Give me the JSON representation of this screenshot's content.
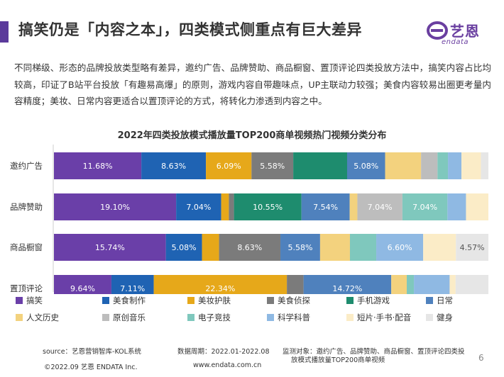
{
  "header": {
    "title": "搞笑仍是「内容之本」，四类模式侧重点有巨大差异",
    "accent_color": "#5b3a9b",
    "logo_cn": "艺恩",
    "logo_en": "endata",
    "logo_color": "#6a3fa0"
  },
  "description": "不同梯级、形态的品牌投放类型略有差异，邀约广告、品牌赞助、商品橱窗、置顶评论四类投放方法中，搞笑内容占比均较高，印证了B站平台投放「有趣易高爆」的原则，游戏内容自带趣味点，UP主联动力较强；美食内容较易出圈更考量内容精度；美妆、日常内容更适合以置顶评论的方式，将转化力渗透到内容之中。",
  "chart_data": {
    "type": "bar",
    "orientation": "horizontal",
    "stacked": true,
    "percent": true,
    "title": "2022年四类投放模式播放量TOP200商单视频热门视频分类分布",
    "categories": [
      "邀约广告",
      "品牌赞助",
      "商品橱窗",
      "置顶评论"
    ],
    "xlim": [
      0,
      100
    ],
    "grid": false,
    "legend_position": "bottom",
    "series": [
      {
        "name": "搞笑",
        "color": "#6a3fa8",
        "values": [
          11.68,
          19.1,
          15.74,
          9.64
        ],
        "labels": [
          "11.68%",
          "19.10%",
          "15.74%",
          "9.64%"
        ]
      },
      {
        "name": "美食制作",
        "color": "#1f63b3",
        "values": [
          8.63,
          7.04,
          5.08,
          7.11
        ],
        "labels": [
          "8.63%",
          "7.04%",
          "5.08%",
          "7.11%"
        ]
      },
      {
        "name": "美妆护肤",
        "color": "#e6a81a",
        "values": [
          6.09,
          1.2,
          2.4,
          22.34
        ],
        "labels": [
          "6.09%",
          "",
          "",
          "22.34%"
        ]
      },
      {
        "name": "美食侦探",
        "color": "#7b7b7b",
        "values": [
          5.58,
          0.8,
          8.63,
          2.8
        ],
        "labels": [
          "5.58%",
          "",
          "8.63%",
          ""
        ]
      },
      {
        "name": "手机游戏",
        "color": "#1e8c6e",
        "values": [
          7.2,
          10.55,
          0,
          0
        ],
        "labels": [
          "",
          "10.55%",
          "",
          ""
        ]
      },
      {
        "name": "日常",
        "color": "#4f81bd",
        "values": [
          5.08,
          7.54,
          5.58,
          14.72
        ],
        "labels": [
          "5.08%",
          "7.54%",
          "5.58%",
          "14.72%"
        ]
      },
      {
        "name": "人文历史",
        "color": "#f3d27e",
        "values": [
          4.8,
          1.2,
          4.2,
          2.6
        ],
        "labels": [
          "",
          "",
          "",
          ""
        ]
      },
      {
        "name": "原创音乐",
        "color": "#bdbdbd",
        "values": [
          2.2,
          7.04,
          0,
          0
        ],
        "labels": [
          "",
          "7.04%",
          "",
          ""
        ]
      },
      {
        "name": "电子竞技",
        "color": "#7fc8bd",
        "values": [
          1.4,
          7.04,
          3.7,
          1.2
        ],
        "labels": [
          "",
          "7.04%",
          "",
          ""
        ]
      },
      {
        "name": "科学科普",
        "color": "#8fb9e3",
        "values": [
          1.8,
          2.9,
          6.6,
          6.0
        ],
        "labels": [
          "",
          "",
          "6.60%",
          ""
        ]
      },
      {
        "name": "短片·手书·配音",
        "color": "#fbecc7",
        "values": [
          2.6,
          3.5,
          4.6,
          1.0
        ],
        "labels": [
          "",
          "",
          "",
          ""
        ]
      },
      {
        "name": "健身",
        "color": "#e6e6e6",
        "values": [
          1.0,
          0,
          4.57,
          5.5
        ],
        "labels": [
          "",
          "",
          "4.57%",
          ""
        ]
      }
    ]
  },
  "footer": {
    "source": "source：艺恩营销智库-KOL系统",
    "period": "数据周期：2022.01-2022.08",
    "object_line1": "监测对象：邀约广告、品牌赞助、商品橱窗、置顶评论四类投",
    "object_line2": "放模式播放量TOP200商单视频",
    "copyright": "©2022.09 艺恩 ENDATA Inc.",
    "website": "www.endata.com.cn",
    "page": "6"
  }
}
